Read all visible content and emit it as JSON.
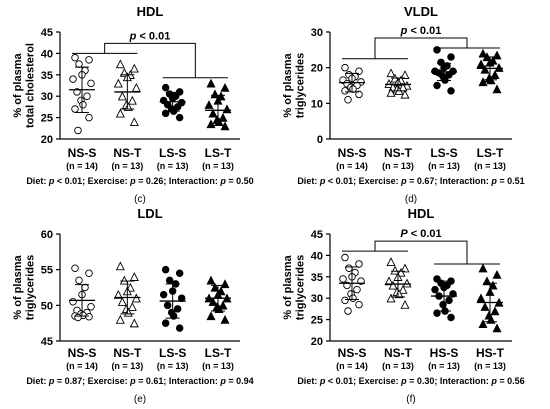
{
  "chart_data": [
    {
      "type": "scatter",
      "panel_label": "(c)",
      "title": "HDL",
      "ylabel": [
        "% of plasma",
        "total cholesterol"
      ],
      "ylim": [
        20,
        45
      ],
      "yticks": [
        20,
        25,
        30,
        35,
        40,
        45
      ],
      "categories": [
        {
          "name": "NS-S",
          "n": "(n = 14)",
          "marker": "open-circle"
        },
        {
          "name": "NS-T",
          "n": "(n = 13)",
          "marker": "open-triangle"
        },
        {
          "name": "LS-S",
          "n": "(n = 13)",
          "marker": "filled-circle"
        },
        {
          "name": "LS-T",
          "n": "(n = 13)",
          "marker": "filled-triangle"
        }
      ],
      "groups": [
        {
          "mean": 31.5,
          "sd": 5.3,
          "points": [
            39,
            38.5,
            37.5,
            36,
            35,
            34,
            33,
            31,
            30,
            29,
            28,
            27,
            25,
            22
          ]
        },
        {
          "mean": 31.0,
          "sd": 4.0,
          "points": [
            37.5,
            36.5,
            35.5,
            35,
            34.5,
            33,
            32,
            30,
            29,
            28,
            27.5,
            26,
            24
          ]
        },
        {
          "mean": 28.7,
          "sd": 2.2,
          "points": [
            32,
            31,
            30.5,
            30,
            29.5,
            29,
            28.5,
            28,
            27.5,
            27,
            26.5,
            26,
            25
          ]
        },
        {
          "mean": 26.7,
          "sd": 3.5,
          "points": [
            33,
            32,
            30.5,
            30,
            29,
            28,
            27,
            26,
            25,
            24.5,
            24,
            23.5,
            23
          ]
        }
      ],
      "significance": {
        "label": "p < 0.01",
        "left_level": 40,
        "right_level": 34.3
      },
      "footer": "Diet: p < 0.01; Exercise: p = 0.26; Interaction: p = 0.50"
    },
    {
      "type": "scatter",
      "panel_label": "(d)",
      "title": "VLDL",
      "ylabel": [
        "% of plasma",
        "triglycerides"
      ],
      "ylim": [
        0,
        30
      ],
      "yticks": [
        0,
        10,
        20,
        30
      ],
      "categories": [
        {
          "name": "NS-S",
          "n": "(n = 14)",
          "marker": "open-circle"
        },
        {
          "name": "NS-T",
          "n": "(n = 13)",
          "marker": "open-triangle"
        },
        {
          "name": "LS-S",
          "n": "(n = 13)",
          "marker": "filled-circle"
        },
        {
          "name": "LS-T",
          "n": "(n = 13)",
          "marker": "filled-triangle"
        }
      ],
      "groups": [
        {
          "mean": 15.8,
          "sd": 2.6,
          "points": [
            20,
            19,
            18,
            17.5,
            17,
            16.5,
            16,
            15.5,
            15,
            14.5,
            14,
            13.5,
            12.5,
            11
          ]
        },
        {
          "mean": 15.3,
          "sd": 1.8,
          "points": [
            18.5,
            18,
            17,
            16.5,
            16,
            15.5,
            15,
            14.5,
            14.5,
            14,
            13.5,
            13,
            12.5
          ]
        },
        {
          "mean": 18.8,
          "sd": 2.4,
          "points": [
            25,
            23,
            21.5,
            20.5,
            20,
            19,
            19,
            18.5,
            18,
            17.5,
            16.5,
            15,
            13.5
          ]
        },
        {
          "mean": 19.8,
          "sd": 3.2,
          "points": [
            24,
            23.5,
            23,
            22,
            21.5,
            21,
            20,
            19.5,
            18,
            17,
            16.5,
            16,
            14
          ]
        }
      ],
      "significance": {
        "label": "p < 0.01",
        "left_level": 22.5,
        "right_level": 25.5
      },
      "footer": "Diet: p < 0.01; Exercise: p = 0.67; Interaction: p = 0.51"
    },
    {
      "type": "scatter",
      "panel_label": "(e)",
      "title": "LDL",
      "ylabel": [
        "% of plasma",
        "triglycerides"
      ],
      "ylim": [
        45,
        60
      ],
      "yticks": [
        45,
        50,
        55,
        60
      ],
      "categories": [
        {
          "name": "NS-S",
          "n": "(n = 14)",
          "marker": "open-circle"
        },
        {
          "name": "NS-T",
          "n": "(n = 13)",
          "marker": "open-triangle"
        },
        {
          "name": "LS-S",
          "n": "(n = 13)",
          "marker": "filled-circle"
        },
        {
          "name": "LS-T",
          "n": "(n = 13)",
          "marker": "filled-triangle"
        }
      ],
      "groups": [
        {
          "mean": 50.7,
          "sd": 2.2,
          "points": [
            55.2,
            54.5,
            53.5,
            52.5,
            51.5,
            50.5,
            49.8,
            49.3,
            49,
            48.8,
            48.6,
            48.5,
            48.4,
            48.3
          ]
        },
        {
          "mean": 51.1,
          "sd": 2.3,
          "points": [
            55.5,
            54,
            53.5,
            52.5,
            52,
            51.5,
            51,
            50.5,
            49.8,
            49.5,
            49,
            48,
            47.5
          ]
        },
        {
          "mean": 50.6,
          "sd": 2.4,
          "points": [
            55,
            54.5,
            53.5,
            53,
            52,
            51.5,
            51,
            50,
            49.5,
            49,
            48.5,
            47.5,
            46.8
          ]
        },
        {
          "mean": 51.0,
          "sd": 1.8,
          "points": [
            53.5,
            53,
            52.5,
            52,
            51.5,
            51,
            51,
            50.5,
            50,
            49.8,
            49.5,
            48.5,
            48
          ]
        }
      ],
      "significance": null,
      "footer": "Diet: p = 0.87; Exercise: p = 0.61; Interaction: p = 0.94"
    },
    {
      "type": "scatter",
      "panel_label": "(f)",
      "title": "HDL",
      "ylabel": [
        "% of plasma",
        "triglycerides"
      ],
      "ylim": [
        20,
        45
      ],
      "yticks": [
        20,
        25,
        30,
        35,
        40,
        45
      ],
      "categories": [
        {
          "name": "NS-S",
          "n": "(n = 14)",
          "marker": "open-circle"
        },
        {
          "name": "NS-T",
          "n": "(n = 13)",
          "marker": "open-triangle"
        },
        {
          "name": "HS-S",
          "n": "(n = 13)",
          "marker": "filled-circle"
        },
        {
          "name": "HS-T",
          "n": "(n = 13)",
          "marker": "filled-triangle"
        }
      ],
      "groups": [
        {
          "mean": 33.5,
          "sd": 3.8,
          "points": [
            39.5,
            38,
            37,
            36,
            35,
            34.5,
            34,
            33,
            32,
            31,
            30,
            29.5,
            28.5,
            27
          ]
        },
        {
          "mean": 33.3,
          "sd": 3.0,
          "points": [
            38.5,
            37,
            36.5,
            36,
            35,
            34,
            33.5,
            33,
            32,
            31.5,
            31,
            30,
            28.5
          ]
        },
        {
          "mean": 30.5,
          "sd": 3.5,
          "points": [
            34.5,
            34,
            33.5,
            33,
            32.5,
            32,
            31,
            30.5,
            29.5,
            28.5,
            27,
            26.5,
            25.5
          ]
        },
        {
          "mean": 29.0,
          "sd": 4.5,
          "points": [
            37,
            35.5,
            34,
            33,
            31.5,
            30,
            29,
            28,
            27,
            26,
            25,
            24,
            23
          ]
        }
      ],
      "significance": {
        "label": "P < 0.01",
        "left_level": 41,
        "right_level": 38
      },
      "footer": "Diet: p < 0.01; Exercise: p = 0.30; Interaction: p = 0.56"
    }
  ]
}
